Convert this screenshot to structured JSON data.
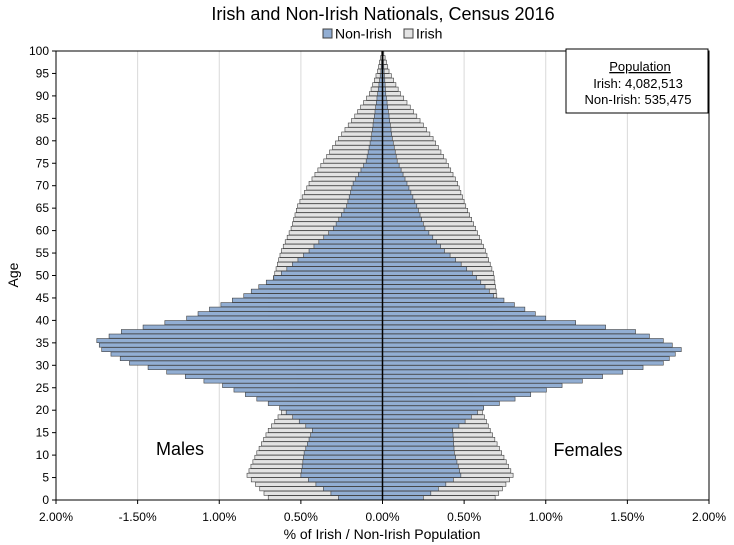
{
  "chart_data": {
    "type": "bar",
    "orientation": "horizontal",
    "title": "Irish and Non-Irish Nationals, Census 2016",
    "xlabel": "% of Irish / Non-Irish Population",
    "ylabel": "Age",
    "xlim": [
      -2.0,
      2.0
    ],
    "ylim": [
      0,
      100
    ],
    "x_ticks": [
      "2.00%",
      "-1.50%",
      "1.00%",
      "0.50%",
      "0.00%",
      "0.50%",
      "1.00%",
      "1.50%",
      "2.00%"
    ],
    "y_ticks": [
      "0",
      "5",
      "10",
      "15",
      "20",
      "25",
      "30",
      "35",
      "40",
      "45",
      "50",
      "55",
      "60",
      "65",
      "70",
      "75",
      "80",
      "85",
      "90",
      "95",
      "100"
    ],
    "grid": "vertical",
    "legend_position": "top",
    "labels": {
      "left": "Males",
      "right": "Females"
    },
    "info_box": {
      "heading": "Population",
      "line1": "Irish: 4,082,513",
      "line2": "Non-Irish: 535,475"
    },
    "colors": {
      "Non-Irish": "#92aed3",
      "Irish": "#e3e3e3",
      "outline": "#404040"
    },
    "anchors": {
      "ages": [
        0,
        5,
        10,
        15,
        20,
        25,
        30,
        33,
        35,
        37,
        40,
        45,
        50,
        55,
        60,
        65,
        70,
        75,
        80,
        85,
        90,
        95,
        100
      ],
      "irish_male": [
        0.7,
        0.83,
        0.77,
        0.7,
        0.6,
        0.52,
        0.53,
        0.58,
        0.58,
        0.65,
        0.7,
        0.7,
        0.66,
        0.62,
        0.56,
        0.52,
        0.45,
        0.36,
        0.27,
        0.17,
        0.08,
        0.03,
        0.0
      ],
      "irish_female": [
        0.69,
        0.8,
        0.73,
        0.66,
        0.6,
        0.52,
        0.53,
        0.58,
        0.58,
        0.65,
        0.72,
        0.7,
        0.68,
        0.63,
        0.57,
        0.51,
        0.46,
        0.39,
        0.31,
        0.21,
        0.11,
        0.04,
        0.0
      ],
      "non_irish_male": [
        0.27,
        0.5,
        0.48,
        0.43,
        0.63,
        0.98,
        1.55,
        1.72,
        1.75,
        1.6,
        1.2,
        0.85,
        0.62,
        0.45,
        0.3,
        0.22,
        0.18,
        0.1,
        0.07,
        0.05,
        0.03,
        0.01,
        0.0
      ],
      "non_irish_female": [
        0.25,
        0.48,
        0.44,
        0.43,
        0.62,
        1.1,
        1.72,
        1.83,
        1.72,
        1.55,
        1.0,
        0.68,
        0.55,
        0.38,
        0.26,
        0.21,
        0.15,
        0.09,
        0.06,
        0.04,
        0.02,
        0.01,
        0.0
      ]
    }
  }
}
